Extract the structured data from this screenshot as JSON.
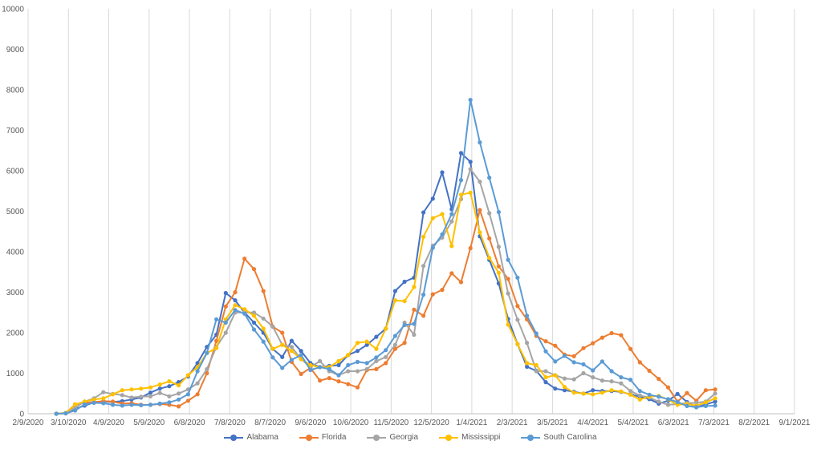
{
  "chart_data": {
    "type": "line",
    "title": "",
    "xlabel": "",
    "ylabel": "",
    "ylim": [
      0,
      10000
    ],
    "y_ticks": [
      "0",
      "1000",
      "2000",
      "3000",
      "4000",
      "5000",
      "6000",
      "7000",
      "8000",
      "9000",
      "10000"
    ],
    "x_ticks": [
      "2/9/2020",
      "3/10/2020",
      "4/9/2020",
      "5/9/2020",
      "6/8/2020",
      "7/8/2020",
      "8/7/2020",
      "9/6/2020",
      "10/6/2020",
      "11/5/2020",
      "12/5/2020",
      "1/4/2021",
      "2/3/2021",
      "3/5/2021",
      "4/4/2021",
      "5/4/2021",
      "6/3/2021",
      "7/3/2021",
      "8/2/2021",
      "9/1/2021"
    ],
    "x_range": [
      "2020-02-09",
      "2021-09-01"
    ],
    "grid": "vertical gridlines",
    "legend_position": "bottom",
    "x": [
      "2020-03-01",
      "2020-03-08",
      "2020-03-15",
      "2020-03-22",
      "2020-03-29",
      "2020-04-05",
      "2020-04-12",
      "2020-04-19",
      "2020-04-26",
      "2020-05-03",
      "2020-05-10",
      "2020-05-17",
      "2020-05-24",
      "2020-05-31",
      "2020-06-07",
      "2020-06-14",
      "2020-06-21",
      "2020-06-28",
      "2020-07-05",
      "2020-07-12",
      "2020-07-19",
      "2020-07-26",
      "2020-08-02",
      "2020-08-09",
      "2020-08-16",
      "2020-08-23",
      "2020-08-30",
      "2020-09-06",
      "2020-09-13",
      "2020-09-20",
      "2020-09-27",
      "2020-10-04",
      "2020-10-11",
      "2020-10-18",
      "2020-10-25",
      "2020-11-01",
      "2020-11-08",
      "2020-11-15",
      "2020-11-22",
      "2020-11-29",
      "2020-12-06",
      "2020-12-13",
      "2020-12-20",
      "2020-12-27",
      "2021-01-03",
      "2021-01-10",
      "2021-01-17",
      "2021-01-24",
      "2021-01-31",
      "2021-02-07",
      "2021-02-14",
      "2021-02-21",
      "2021-02-28",
      "2021-03-07",
      "2021-03-14",
      "2021-03-21",
      "2021-03-28",
      "2021-04-04",
      "2021-04-11",
      "2021-04-18",
      "2021-04-25",
      "2021-05-02",
      "2021-05-09",
      "2021-05-16",
      "2021-05-23",
      "2021-05-30",
      "2021-06-06",
      "2021-06-13",
      "2021-06-20",
      "2021-06-27",
      "2021-07-04"
    ],
    "series": [
      {
        "name": "Alabama",
        "color": "#4472C4",
        "values": [
          0,
          10,
          120,
          200,
          280,
          300,
          290,
          310,
          350,
          400,
          520,
          620,
          680,
          780,
          920,
          1250,
          1650,
          1950,
          2980,
          2800,
          2500,
          2250,
          2000,
          1600,
          1400,
          1800,
          1550,
          1250,
          1150,
          1180,
          1200,
          1450,
          1550,
          1700,
          1900,
          2100,
          3030,
          3260,
          3360,
          4970,
          5310,
          5960,
          5050,
          6440,
          6220,
          4380,
          3800,
          3220,
          2340,
          1720,
          1160,
          1060,
          780,
          620,
          580,
          540,
          500,
          580,
          560,
          560,
          540,
          480,
          420,
          360,
          250,
          320,
          490,
          290,
          160,
          230,
          300
        ]
      },
      {
        "name": "Florida",
        "color": "#ED7D31",
        "values": [
          0,
          10,
          230,
          270,
          290,
          310,
          300,
          250,
          260,
          220,
          220,
          240,
          220,
          180,
          320,
          480,
          1000,
          1800,
          2650,
          3000,
          3830,
          3570,
          3030,
          2150,
          2000,
          1280,
          980,
          1130,
          820,
          880,
          800,
          730,
          650,
          1080,
          1100,
          1250,
          1600,
          1750,
          2570,
          2420,
          2950,
          3060,
          3470,
          3250,
          4090,
          5030,
          4330,
          3640,
          3330,
          2660,
          2330,
          1920,
          1790,
          1680,
          1460,
          1420,
          1620,
          1740,
          1880,
          1990,
          1940,
          1600,
          1270,
          1060,
          860,
          650,
          300,
          510,
          320,
          580,
          600
        ]
      },
      {
        "name": "Georgia",
        "color": "#A5A5A5",
        "values": [
          0,
          20,
          150,
          300,
          380,
          530,
          490,
          460,
          400,
          420,
          430,
          510,
          430,
          500,
          600,
          750,
          1100,
          1650,
          2000,
          2500,
          2500,
          2500,
          2350,
          2150,
          1700,
          1650,
          1350,
          1150,
          1300,
          1050,
          950,
          1050,
          1050,
          1100,
          1300,
          1400,
          1700,
          2250,
          1950,
          3650,
          4150,
          4350,
          4750,
          5300,
          6040,
          5730,
          4950,
          4120,
          2970,
          2320,
          1750,
          1050,
          1050,
          950,
          870,
          850,
          1000,
          900,
          820,
          800,
          750,
          560,
          450,
          400,
          300,
          220,
          240,
          260,
          270,
          300,
          500
        ]
      },
      {
        "name": "Mississippi",
        "color": "#FFC000",
        "values": [
          0,
          20,
          230,
          300,
          350,
          380,
          480,
          580,
          600,
          620,
          650,
          720,
          800,
          700,
          950,
          1150,
          1500,
          1620,
          2330,
          2680,
          2580,
          2420,
          2100,
          1600,
          1700,
          1550,
          1350,
          1200,
          1150,
          1150,
          1300,
          1450,
          1750,
          1780,
          1600,
          2100,
          2800,
          2780,
          3130,
          4370,
          4830,
          4930,
          4140,
          5410,
          5460,
          4480,
          3850,
          3480,
          2200,
          1720,
          1250,
          1200,
          900,
          950,
          660,
          520,
          500,
          480,
          520,
          580,
          550,
          470,
          350,
          420,
          440,
          350,
          220,
          240,
          200,
          280,
          380
        ]
      },
      {
        "name": "South Carolina",
        "color": "#5B9BD5",
        "values": [
          0,
          10,
          80,
          230,
          270,
          260,
          220,
          200,
          220,
          210,
          220,
          250,
          280,
          350,
          480,
          1050,
          1500,
          2330,
          2250,
          2560,
          2470,
          2080,
          1780,
          1390,
          1130,
          1330,
          1450,
          1080,
          1150,
          1100,
          950,
          1200,
          1280,
          1250,
          1390,
          1570,
          1920,
          2190,
          2220,
          2940,
          4100,
          4430,
          4930,
          5770,
          7750,
          6700,
          5830,
          4980,
          3800,
          3360,
          2420,
          1980,
          1540,
          1290,
          1430,
          1270,
          1220,
          1070,
          1290,
          1050,
          900,
          840,
          560,
          470,
          420,
          360,
          290,
          190,
          160,
          190,
          200
        ]
      }
    ]
  }
}
